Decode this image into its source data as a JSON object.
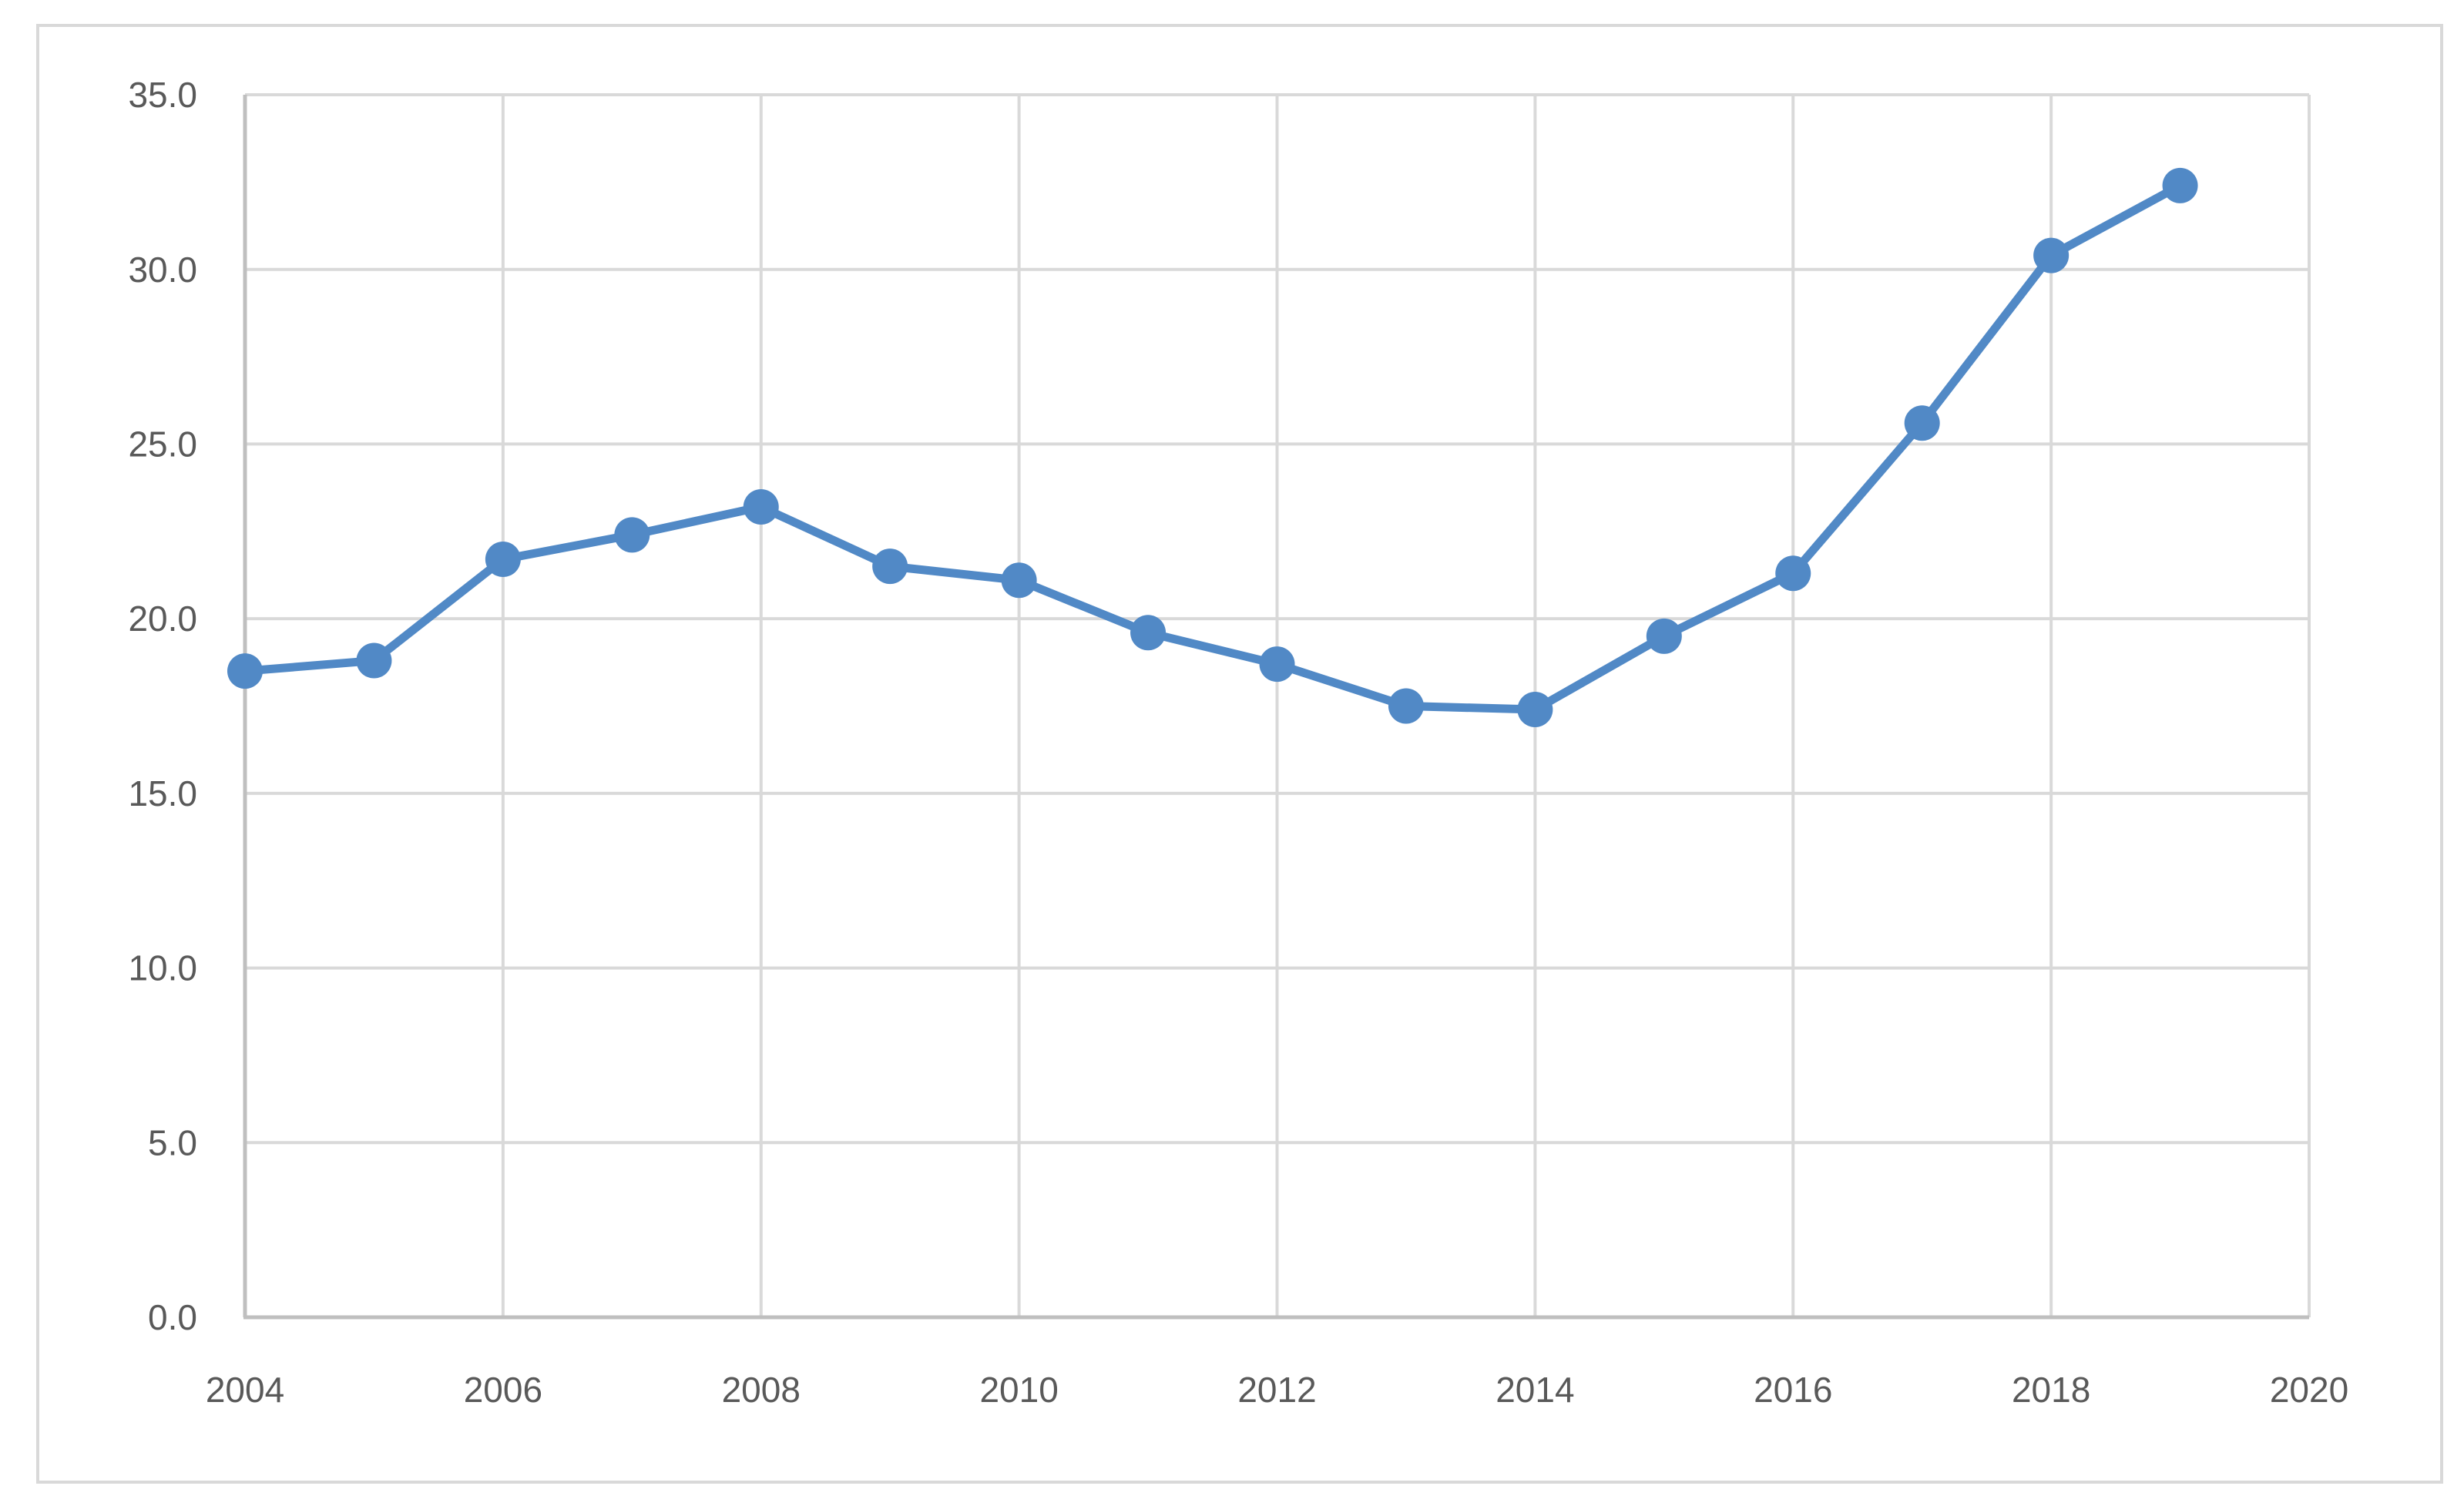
{
  "chart_data": {
    "type": "line",
    "title": "",
    "xlabel": "",
    "ylabel": "",
    "x": [
      2004,
      2005,
      2006,
      2007,
      2008,
      2009,
      2010,
      2011,
      2012,
      2013,
      2014,
      2015,
      2016,
      2017,
      2018,
      2019
    ],
    "series": [
      {
        "values": [
          18.5,
          18.8,
          21.7,
          22.4,
          23.2,
          21.5,
          21.1,
          19.6,
          18.7,
          17.5,
          17.4,
          19.5,
          21.3,
          25.6,
          30.4,
          32.4
        ]
      }
    ],
    "xlim": [
      2004,
      2020
    ],
    "ylim": [
      0,
      35
    ],
    "xticks": [
      2004,
      2006,
      2008,
      2010,
      2012,
      2014,
      2016,
      2018,
      2020
    ],
    "xtick_labels": [
      "2004",
      "2006",
      "2008",
      "2010",
      "2012",
      "2014",
      "2016",
      "2018",
      "2020"
    ],
    "yticks": [
      0,
      5,
      10,
      15,
      20,
      25,
      30,
      35
    ],
    "ytick_labels": [
      "0.0",
      "5.0",
      "10.0",
      "15.0",
      "20.0",
      "25.0",
      "30.0",
      "35.0"
    ],
    "grid": true,
    "legend": false,
    "marker": "circle",
    "colors": {
      "line": "#5189c6",
      "marker": "#5189c6",
      "gridline": "#d9d9d9",
      "axis_line": "#bfbfbf",
      "tick_label": "#595959",
      "border": "#d9d9d9",
      "background": "#ffffff"
    }
  }
}
